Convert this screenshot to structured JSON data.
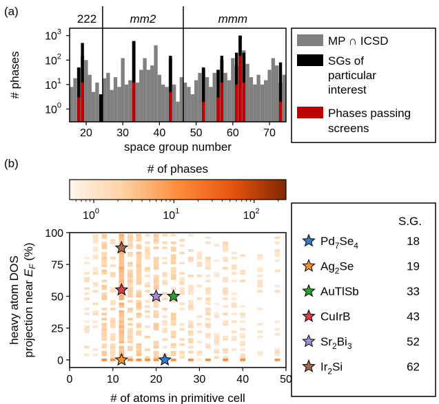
{
  "figure": {
    "panel_a_label": "(a)",
    "panel_b_label": "(b)"
  },
  "chart_data": [
    {
      "type": "bar",
      "panel": "(a)",
      "xlabel": "space group number",
      "ylabel": "# phases",
      "xlim": [
        16,
        74
      ],
      "yscale": "log",
      "ylim": [
        0.3,
        2000
      ],
      "xticks": [
        20,
        30,
        40,
        50,
        60,
        70
      ],
      "yticks": [
        {
          "base": "10",
          "exp": "0",
          "value": 1
        },
        {
          "base": "10",
          "exp": "1",
          "value": 10
        },
        {
          "base": "10",
          "exp": "2",
          "value": 100
        },
        {
          "base": "10",
          "exp": "3",
          "value": 1000
        }
      ],
      "dividers": [
        24.5,
        46.5
      ],
      "regions": [
        {
          "label": "222",
          "italic": false,
          "center": 20.2
        },
        {
          "label": "mm2",
          "italic": true,
          "center": 35.5
        },
        {
          "label": "mmm",
          "italic": true,
          "center": 60
        }
      ],
      "legend_placement": "right, outside",
      "series": [
        {
          "name": "MP ∩ ICSD",
          "color": "#808080",
          "x": [
            16,
            17,
            18,
            19,
            20,
            21,
            22,
            23,
            24,
            25,
            26,
            27,
            28,
            29,
            30,
            31,
            32,
            33,
            34,
            35,
            36,
            37,
            38,
            39,
            40,
            41,
            42,
            43,
            44,
            45,
            46,
            47,
            48,
            49,
            50,
            51,
            52,
            53,
            54,
            55,
            56,
            57,
            58,
            59,
            60,
            61,
            62,
            63,
            64,
            65,
            66,
            67,
            68,
            69,
            70,
            71,
            72,
            73,
            74
          ],
          "values": [
            8,
            18,
            50,
            150,
            100,
            25,
            5,
            12,
            4,
            18,
            30,
            6,
            20,
            8,
            120,
            10,
            15,
            600,
            12,
            40,
            120,
            40,
            60,
            400,
            25,
            10,
            8,
            120,
            10,
            2,
            20,
            12,
            8,
            4,
            15,
            30,
            45,
            20,
            8,
            30,
            40,
            100,
            30,
            15,
            120,
            60,
            1000,
            250,
            70,
            20,
            10,
            25,
            10,
            15,
            40,
            120,
            60,
            12,
            25
          ]
        },
        {
          "name": "SGs of particular interest",
          "color": "#000000",
          "x": [
            18,
            19,
            24,
            33,
            43,
            52,
            56,
            57,
            61,
            62,
            63,
            73
          ],
          "values": [
            50,
            500,
            4,
            600,
            150,
            50,
            40,
            150,
            200,
            1000,
            200,
            80
          ]
        },
        {
          "name": "Phases passing screens",
          "color": "#c00000",
          "x": [
            18,
            19,
            33,
            43,
            52,
            56,
            57,
            61,
            62,
            63,
            73
          ],
          "values": [
            3,
            12,
            12,
            5,
            2,
            3,
            12,
            10,
            150,
            12,
            2
          ]
        }
      ]
    },
    {
      "type": "heatmap",
      "panel": "(b)",
      "xlabel": "# of atoms in primitive cell",
      "ylabel_line1": "heavy atom DOS",
      "ylabel_line2": "projection near E_F (%)",
      "xlim": [
        0,
        50
      ],
      "ylim": [
        -6,
        100
      ],
      "xticks": [
        0,
        10,
        20,
        30,
        40,
        50
      ],
      "yticks": [
        0,
        25,
        50,
        75,
        100
      ],
      "colorbar": {
        "title": "# of phases",
        "scale": "log",
        "range": [
          0.5,
          250
        ],
        "ticks": [
          {
            "base": "10",
            "exp": "0",
            "value": 1
          },
          {
            "base": "10",
            "exp": "1",
            "value": 10
          },
          {
            "base": "10",
            "exp": "2",
            "value": 100
          }
        ]
      },
      "column_weights": [
        {
          "x": 4,
          "weight": 0.15
        },
        {
          "x": 6,
          "weight": 0.3
        },
        {
          "x": 8,
          "weight": 3
        },
        {
          "x": 10,
          "weight": 2
        },
        {
          "x": 12,
          "weight": 6
        },
        {
          "x": 14,
          "weight": 3
        },
        {
          "x": 16,
          "weight": 4
        },
        {
          "x": 18,
          "weight": 2
        },
        {
          "x": 20,
          "weight": 3
        },
        {
          "x": 22,
          "weight": 1.5
        },
        {
          "x": 24,
          "weight": 2.5
        },
        {
          "x": 26,
          "weight": 1
        },
        {
          "x": 28,
          "weight": 1.2
        },
        {
          "x": 30,
          "weight": 0.5
        },
        {
          "x": 32,
          "weight": 1.2
        },
        {
          "x": 34,
          "weight": 0.4
        },
        {
          "x": 36,
          "weight": 1.2
        },
        {
          "x": 38,
          "weight": 0.3
        },
        {
          "x": 40,
          "weight": 0.6
        },
        {
          "x": 44,
          "weight": 0.3
        },
        {
          "x": 48,
          "weight": 0.4
        }
      ],
      "zero_row_columns": [
        8,
        10,
        12,
        14,
        16,
        18,
        20,
        22,
        24,
        28,
        32,
        36,
        40,
        48
      ],
      "highlighted_phases_header": "S.G.",
      "highlighted_phases": [
        {
          "formula": "Pd",
          "sub1": "7",
          "mid": "Se",
          "sub2": "4",
          "sg": "18",
          "color": "#3a78c0",
          "x": 22,
          "y": 0
        },
        {
          "formula": "Ag",
          "sub1": "2",
          "mid": "Se",
          "sub2": "",
          "sg": "19",
          "color": "#f5902a",
          "x": 12,
          "y": 0
        },
        {
          "formula": "AuTlSb",
          "sub1": "",
          "mid": "",
          "sub2": "",
          "sg": "33",
          "color": "#2ca02c",
          "x": 24,
          "y": 50
        },
        {
          "formula": "CuIrB",
          "sub1": "",
          "mid": "",
          "sub2": "",
          "sg": "43",
          "color": "#e0394a",
          "x": 12,
          "y": 55
        },
        {
          "formula": "Sr",
          "sub1": "2",
          "mid": "Bi",
          "sub2": "3",
          "sg": "52",
          "color": "#a68bd6",
          "x": 20,
          "y": 50
        },
        {
          "formula": "Ir",
          "sub1": "2",
          "mid": "Si",
          "sub2": "",
          "sg": "62",
          "color": "#a3684f",
          "x": 12,
          "y": 88
        }
      ]
    }
  ]
}
